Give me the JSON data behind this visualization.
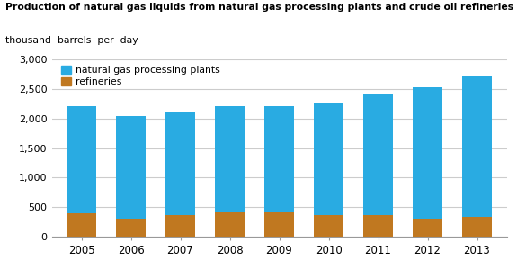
{
  "years": [
    "2005",
    "2006",
    "2007",
    "2008",
    "2009",
    "2010",
    "2011",
    "2012",
    "2013"
  ],
  "ngpl": [
    1820,
    1750,
    1760,
    1810,
    1800,
    1910,
    2070,
    2220,
    2390
  ],
  "refineries": [
    390,
    300,
    360,
    410,
    415,
    360,
    360,
    310,
    340
  ],
  "ngpl_color": "#29ABE2",
  "refineries_color": "#C07820",
  "title_line1": "Production of natural gas liquids from natural gas processing plants and crude oil refineries",
  "title_line2": "thousand  barrels  per  day",
  "legend_ngpl": "natural gas processing plants",
  "legend_refineries": "refineries",
  "ylim": [
    0,
    3000
  ],
  "yticks": [
    0,
    500,
    1000,
    1500,
    2000,
    2500,
    3000
  ],
  "background_color": "#ffffff",
  "grid_color": "#cccccc",
  "bar_width": 0.6
}
